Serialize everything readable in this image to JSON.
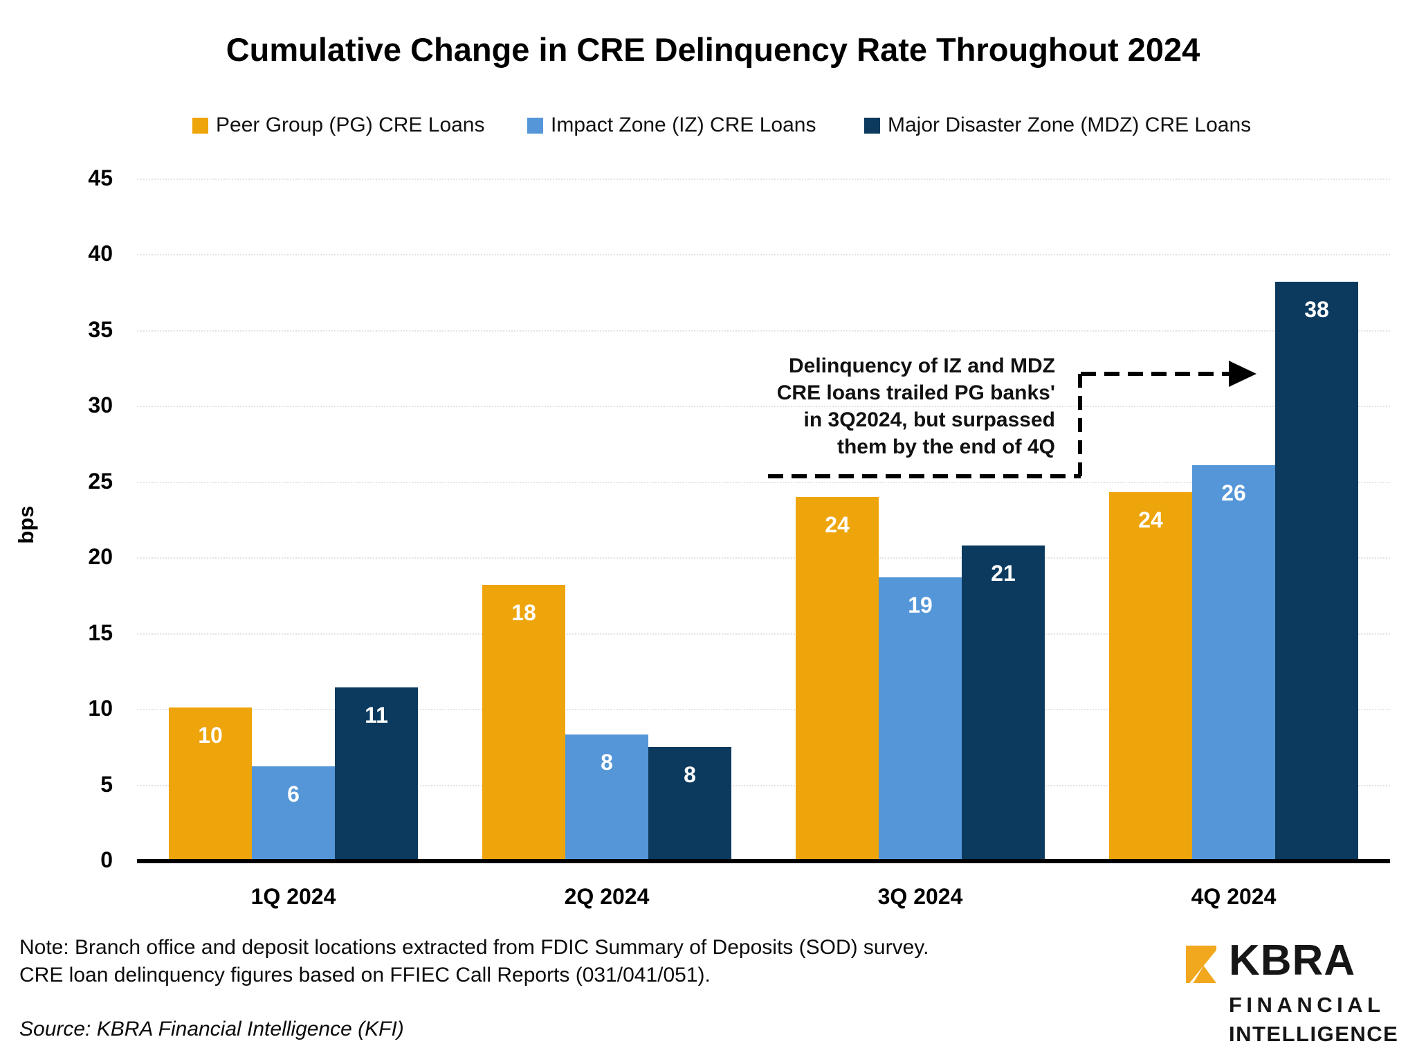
{
  "chart_data": {
    "type": "bar",
    "title": "Cumulative Change in CRE Delinquency Rate Throughout 2024",
    "ylabel": "bps",
    "ylim": [
      0,
      45
    ],
    "ytick_interval": 5,
    "grid": "horizontal-dotted",
    "legend_position": "top",
    "categories": [
      "1Q 2024",
      "2Q 2024",
      "3Q 2024",
      "4Q 2024"
    ],
    "series": [
      {
        "name": "Peer Group (PG) CRE Loans",
        "color": "#EEA40B",
        "labels": [
          10,
          18,
          24,
          24
        ],
        "values": [
          10.1,
          18.2,
          24.0,
          24.3
        ]
      },
      {
        "name": "Impact Zone (IZ) CRE Loans",
        "color": "#5496D8",
        "labels": [
          6,
          8,
          19,
          26
        ],
        "values": [
          6.2,
          8.3,
          18.7,
          26.1
        ]
      },
      {
        "name": "Major Disaster Zone (MDZ) CRE Loans",
        "color": "#0C3A5E",
        "labels": [
          11,
          8,
          21,
          38
        ],
        "values": [
          11.4,
          7.5,
          20.8,
          38.2
        ]
      }
    ],
    "annotation": {
      "lines": [
        "Delinquency of IZ and MDZ",
        "CRE loans trailed PG banks'",
        "in 3Q2024, but surpassed",
        "them by the end of 4Q"
      ],
      "arrow_target": "4Q 2024 MDZ bar"
    }
  },
  "notes": {
    "line1": "Note: Branch office and deposit locations extracted from FDIC Summary of Deposits (SOD) survey.",
    "line2": "CRE loan delinquency figures based on FFIEC Call Reports (031/041/051).",
    "source": "Source: KBRA Financial Intelligence (KFI)"
  },
  "logo": {
    "brand": "KBRA",
    "line1": "FINANCIAL",
    "line2": "INTELLIGENCE",
    "gold": "#F1A81E"
  }
}
